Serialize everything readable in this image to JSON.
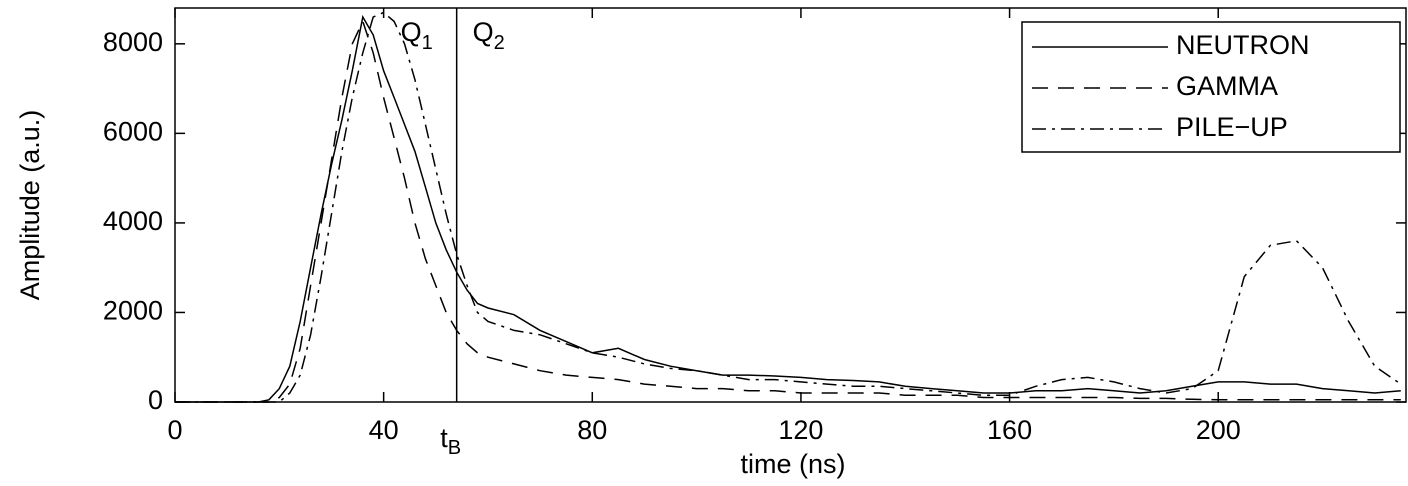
{
  "chart_data": {
    "type": "line",
    "xlabel": "time (ns)",
    "ylabel": "Amplitude (a.u.)",
    "xlim": [
      0,
      236
    ],
    "ylim": [
      0,
      8800
    ],
    "xticks": [
      0,
      40,
      80,
      120,
      160,
      200
    ],
    "yticks": [
      0,
      2000,
      4000,
      6000,
      8000
    ],
    "legend": "upper right",
    "vline": {
      "x": 54,
      "label": "t",
      "sub": "B"
    },
    "annotations": [
      {
        "text": "Q",
        "sub": "1",
        "side": "left"
      },
      {
        "text": "Q",
        "sub": "2",
        "side": "right"
      }
    ],
    "x": [
      0,
      10,
      16,
      18,
      20,
      22,
      24,
      26,
      28,
      30,
      32,
      34,
      36,
      38,
      40,
      42,
      44,
      46,
      48,
      50,
      52,
      54,
      56,
      58,
      60,
      65,
      70,
      75,
      80,
      85,
      90,
      95,
      100,
      105,
      110,
      115,
      120,
      125,
      130,
      135,
      140,
      145,
      150,
      155,
      160,
      165,
      170,
      175,
      180,
      185,
      190,
      195,
      200,
      205,
      210,
      215,
      220,
      225,
      230,
      235
    ],
    "series": [
      {
        "name": "NEUTRON",
        "color": "#000000",
        "dash": "solid",
        "values": [
          0,
          0,
          0,
          50,
          300,
          800,
          1800,
          3000,
          4200,
          5300,
          6300,
          7400,
          8600,
          8200,
          7400,
          6800,
          6200,
          5600,
          4800,
          4000,
          3400,
          2900,
          2500,
          2200,
          2100,
          1950,
          1600,
          1350,
          1100,
          1200,
          950,
          800,
          700,
          600,
          600,
          580,
          550,
          500,
          480,
          450,
          350,
          300,
          250,
          200,
          200,
          250,
          250,
          300,
          250,
          200,
          250,
          350,
          450,
          450,
          400,
          400,
          300,
          250,
          200,
          250
        ]
      },
      {
        "name": "GAMMA",
        "color": "#000000",
        "dash": "dashed",
        "values": [
          0,
          0,
          0,
          0,
          100,
          400,
          1200,
          2600,
          4000,
          5400,
          6800,
          8000,
          8500,
          7800,
          6800,
          5900,
          5000,
          4000,
          3200,
          2600,
          2000,
          1600,
          1300,
          1100,
          1000,
          850,
          700,
          600,
          550,
          500,
          400,
          350,
          300,
          300,
          250,
          250,
          200,
          200,
          200,
          200,
          150,
          150,
          150,
          100,
          100,
          100,
          100,
          100,
          100,
          80,
          80,
          60,
          50,
          50,
          50,
          50,
          50,
          50,
          50,
          50
        ]
      },
      {
        "name": "PILE−UP",
        "color": "#000000",
        "dash": "dashdot",
        "values": [
          0,
          0,
          0,
          0,
          0,
          200,
          600,
          1500,
          2800,
          4200,
          5600,
          6800,
          7800,
          8600,
          8700,
          8500,
          8000,
          7200,
          6200,
          5200,
          4200,
          3300,
          2600,
          2000,
          1800,
          1600,
          1500,
          1300,
          1100,
          1000,
          850,
          750,
          700,
          600,
          500,
          500,
          450,
          400,
          350,
          350,
          300,
          250,
          200,
          150,
          150,
          350,
          500,
          550,
          450,
          300,
          200,
          300,
          700,
          2800,
          3500,
          3600,
          3000,
          1800,
          800,
          400
        ]
      }
    ]
  }
}
